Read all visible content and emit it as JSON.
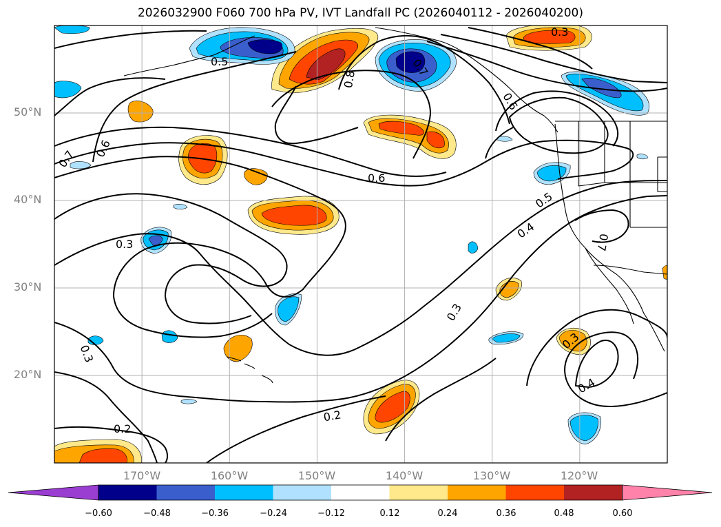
{
  "title": "2026032900 F060 700 hPa PV, IVT Landfall PC (2026040112 - 2026040200)",
  "map": {
    "projection": "cylindrical",
    "lon_range": [
      -180,
      -110
    ],
    "lat_range": [
      10,
      60
    ],
    "lat_labels": [
      "50°N",
      "40°N",
      "30°N",
      "20°N"
    ],
    "lon_labels": [
      "170°W",
      "160°W",
      "150°W",
      "140°W",
      "130°W",
      "120°W"
    ],
    "grid": true,
    "contour_labels": [
      "0.3",
      "0.7",
      "0.8",
      "0.6",
      "0.7",
      "0.5",
      "0.6",
      "0.6",
      "0.5",
      "0.4",
      "0.7",
      "0.3",
      "0.3",
      "0.2",
      "0.3",
      "0.4",
      "0.2",
      "0.3"
    ]
  },
  "colorbar": {
    "ticks": [
      "−0.60",
      "−0.48",
      "−0.36",
      "−0.24",
      "−0.12",
      "0.12",
      "0.24",
      "0.36",
      "0.48",
      "0.60"
    ],
    "colors": [
      "#9a3dd1",
      "#00008b",
      "#3a5fcd",
      "#00bfff",
      "#b0e2ff",
      "#ffffff",
      "#ffe98a",
      "#ffa500",
      "#ff4500",
      "#b22222",
      "#ff82ab"
    ]
  }
}
